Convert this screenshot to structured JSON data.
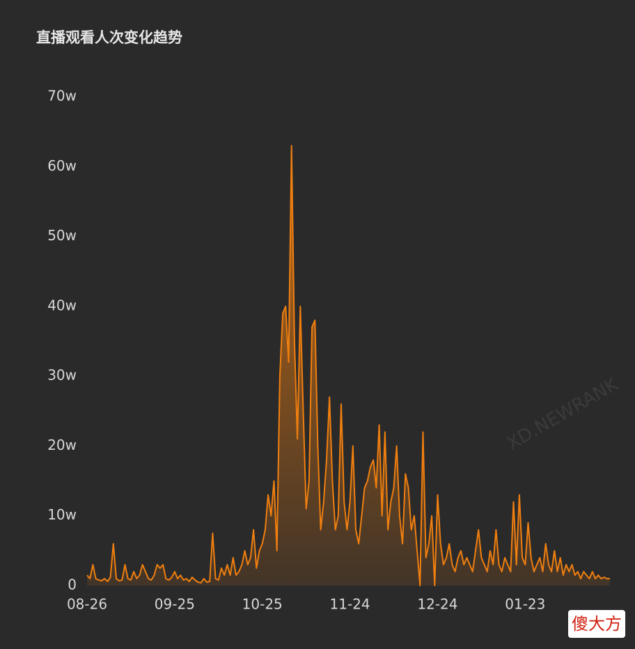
{
  "chart_data": {
    "type": "area",
    "title": "直播观看人次变化趋势",
    "watermark": "XD.NEWRANK",
    "badge": "傻大方",
    "color": "#f07f0f",
    "grid": false,
    "categories": [
      "08-26",
      null,
      null,
      null,
      null,
      null,
      null,
      null,
      null,
      null,
      null,
      null,
      null,
      null,
      null,
      null,
      null,
      null,
      null,
      null,
      null,
      null,
      null,
      null,
      null,
      null,
      null,
      null,
      null,
      null,
      "09-25",
      null,
      null,
      null,
      null,
      null,
      null,
      null,
      null,
      null,
      null,
      null,
      null,
      null,
      null,
      null,
      null,
      null,
      null,
      null,
      null,
      null,
      null,
      null,
      null,
      null,
      null,
      null,
      null,
      null,
      "10-25",
      null,
      null,
      null,
      null,
      null,
      null,
      null,
      null,
      null,
      null,
      null,
      null,
      null,
      null,
      null,
      null,
      null,
      null,
      null,
      null,
      null,
      null,
      null,
      null,
      null,
      null,
      null,
      null,
      null,
      "11-24",
      null,
      null,
      null,
      null,
      null,
      null,
      null,
      null,
      null,
      null,
      null,
      null,
      null,
      null,
      null,
      null,
      null,
      null,
      null,
      null,
      null,
      null,
      null,
      null,
      null,
      null,
      null,
      null,
      null,
      "12-24",
      null,
      null,
      null,
      null,
      null,
      null,
      null,
      null,
      null,
      null,
      null,
      null,
      null,
      null,
      null,
      null,
      null,
      null,
      null,
      null,
      null,
      null,
      null,
      null,
      null,
      null,
      null,
      null,
      null,
      "01-23",
      null,
      null,
      null,
      null,
      null,
      null,
      null,
      null,
      null,
      null,
      null,
      null,
      null,
      null,
      null,
      null,
      null,
      null,
      null,
      null,
      null,
      null,
      null,
      null,
      null,
      null,
      null,
      null,
      null
    ],
    "values": [
      1.5,
      1,
      3,
      1,
      0.8,
      0.7,
      1,
      0.6,
      1.2,
      6,
      1,
      0.7,
      0.8,
      3,
      1,
      0.8,
      2,
      1,
      1.5,
      3,
      2,
      1,
      0.8,
      1.5,
      3,
      2.5,
      3,
      1,
      0.8,
      1.2,
      2,
      1,
      1.5,
      0.8,
      1,
      0.6,
      1.2,
      0.8,
      0.5,
      0.4,
      1,
      0.5,
      0.6,
      7.5,
      1,
      0.8,
      2.5,
      1.5,
      3,
      1.5,
      4,
      1.5,
      2,
      3,
      5,
      3,
      4,
      8,
      2.5,
      5,
      6,
      8,
      13,
      10,
      15,
      5,
      30,
      39,
      40,
      32,
      63,
      35,
      21,
      40,
      25,
      11,
      15,
      37,
      38,
      20,
      8,
      12,
      18,
      27,
      15,
      8,
      10,
      26,
      12,
      8,
      12,
      20,
      8,
      6,
      10,
      14,
      15,
      17,
      18,
      14,
      23,
      10,
      22,
      8,
      12,
      14,
      20,
      10,
      6,
      16,
      14,
      8,
      10,
      5,
      0,
      22,
      4,
      6,
      10,
      0,
      13,
      6,
      3,
      4,
      6,
      3,
      2,
      4,
      5,
      3,
      4,
      3,
      2,
      5,
      8,
      4,
      3,
      2,
      5,
      3,
      8,
      3,
      2,
      4,
      3,
      2,
      12,
      3,
      13,
      4,
      3,
      9,
      4,
      2,
      3,
      4,
      2,
      6,
      3,
      2,
      5,
      2,
      4,
      1.5,
      3,
      2,
      3,
      1.5,
      2,
      1,
      2,
      1.5,
      1,
      2,
      1,
      1.5,
      1,
      1.2,
      1,
      1
    ],
    "ylim": [
      0,
      70
    ],
    "yticks": [
      0,
      {
        "value": 10,
        "label": "10w"
      },
      {
        "value": 20,
        "label": "20w"
      },
      {
        "value": 30,
        "label": "30w"
      },
      {
        "value": 40,
        "label": "40w"
      },
      {
        "value": 50,
        "label": "50w"
      },
      {
        "value": 60,
        "label": "60w"
      },
      {
        "value": 70,
        "label": "70w"
      }
    ]
  }
}
